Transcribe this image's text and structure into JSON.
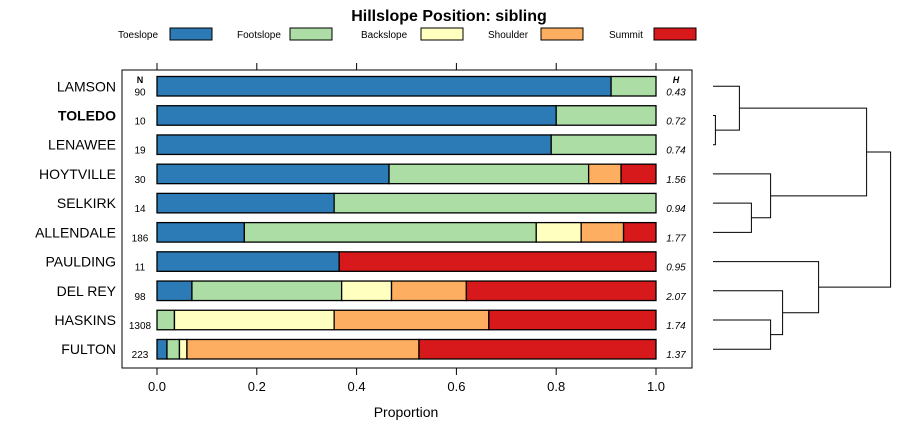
{
  "chart_data": {
    "type": "bar",
    "stacked": true,
    "orientation": "horizontal",
    "title": "Hillslope Position: sibling",
    "xlabel": "Proportion",
    "ylabel": "",
    "xlim": [
      0,
      1
    ],
    "xticks": [
      "0.0",
      "0.2",
      "0.4",
      "0.6",
      "0.8",
      "1.0"
    ],
    "n_header": "N",
    "h_header": "H",
    "legend_position": "top",
    "categories": [
      "LAMSON",
      "TOLEDO",
      "LENAWEE",
      "HOYTVILLE",
      "SELKIRK",
      "ALLENDALE",
      "PAULDING",
      "DEL REY",
      "HASKINS",
      "FULTON"
    ],
    "highlight": "TOLEDO",
    "n": [
      "90",
      "10",
      "19",
      "30",
      "14",
      "186",
      "11",
      "98",
      "1308",
      "223"
    ],
    "h": [
      "0.43",
      "0.72",
      "0.74",
      "1.56",
      "0.94",
      "1.77",
      "0.95",
      "2.07",
      "1.74",
      "1.37"
    ],
    "series": [
      {
        "name": "Toeslope",
        "color": "#2c7bb6",
        "values": [
          0.91,
          0.8,
          0.79,
          0.465,
          0.355,
          0.175,
          0.365,
          0.07,
          0.0,
          0.02
        ]
      },
      {
        "name": "Footslope",
        "color": "#abdda4",
        "values": [
          0.09,
          0.2,
          0.21,
          0.4,
          0.645,
          0.585,
          0.0,
          0.3,
          0.035,
          0.025
        ]
      },
      {
        "name": "Backslope",
        "color": "#ffffbf",
        "values": [
          0.0,
          0.0,
          0.0,
          0.0,
          0.0,
          0.09,
          0.0,
          0.1,
          0.32,
          0.015
        ]
      },
      {
        "name": "Shoulder",
        "color": "#fdae61",
        "values": [
          0.0,
          0.0,
          0.0,
          0.065,
          0.0,
          0.085,
          0.0,
          0.15,
          0.31,
          0.465
        ]
      },
      {
        "name": "Summit",
        "color": "#d7191c",
        "values": [
          0.0,
          0.0,
          0.0,
          0.07,
          0.0,
          0.065,
          0.635,
          0.38,
          0.335,
          0.475
        ]
      }
    ],
    "dendrogram": {
      "leaves": [
        "LAMSON",
        "TOLEDO",
        "LENAWEE",
        "HOYTVILLE",
        "SELKIRK",
        "ALLENDALE",
        "PAULDING",
        "DEL REY",
        "HASKINS",
        "FULTON"
      ],
      "merges": [
        {
          "a": "TOLEDO",
          "b": "LENAWEE",
          "height": 0.05
        },
        {
          "a": "LAMSON",
          "b": "TOLEDO+LENAWEE",
          "height": 0.55
        },
        {
          "a": "SELKIRK",
          "b": "ALLENDALE",
          "height": 0.8
        },
        {
          "a": "HASKINS",
          "b": "FULTON",
          "height": 1.2
        },
        {
          "a": "DEL REY",
          "b": "HASKINS+FULTON",
          "height": 1.45
        },
        {
          "a": "HOYTVILLE",
          "b": "SELKIRK+ALLENDALE",
          "height": 1.2
        },
        {
          "a": "PAULDING",
          "b": "DEL REY+HASKINS+FULTON",
          "height": 2.2
        },
        {
          "a": "LAMSON+TOLEDO+LENAWEE",
          "b": "HOYTVILLE+SELKIRK+ALLENDALE",
          "height": 3.2
        },
        {
          "a": "TOP",
          "b": "BOTTOM",
          "height": 3.7
        }
      ]
    }
  }
}
